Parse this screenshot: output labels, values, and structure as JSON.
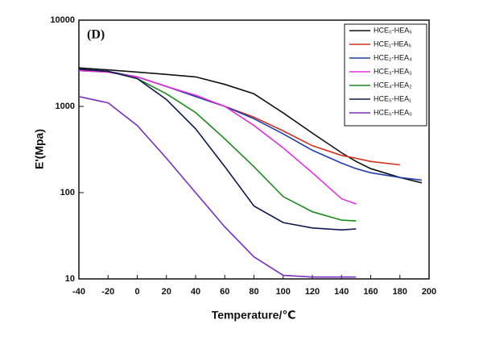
{
  "chart_data": {
    "type": "line",
    "annotation": "(D)",
    "x_label": "Temperature/℃",
    "y_label": "E'(Mpa)",
    "x": [
      -40,
      -20,
      0,
      20,
      40,
      60,
      80,
      100,
      120,
      140,
      150,
      160,
      180,
      195
    ],
    "xlim": [
      -40,
      200
    ],
    "xticks": [
      -40,
      -20,
      0,
      20,
      40,
      60,
      80,
      100,
      120,
      140,
      160,
      180,
      200
    ],
    "ylim": [
      10,
      10000
    ],
    "yticks": [
      10,
      100,
      1000,
      10000
    ],
    "yscale": "log",
    "grid": false,
    "legend": "upper right",
    "series": [
      {
        "name": "HCE₀-HEA₆",
        "color": "#111111",
        "values": [
          2800,
          2650,
          2500,
          2350,
          2200,
          1800,
          1400,
          840,
          490,
          290,
          230,
          190,
          150,
          130
        ]
      },
      {
        "name": "HCE₁-HEA₅",
        "color": "#d0301c",
        "values": [
          2600,
          2500,
          2200,
          1700,
          1300,
          1000,
          750,
          520,
          350,
          270,
          250,
          230,
          210,
          null
        ]
      },
      {
        "name": "HCE₂-HEA₄",
        "color": "#1f3fa8",
        "values": [
          2700,
          2550,
          2200,
          1700,
          1300,
          1000,
          720,
          480,
          310,
          220,
          190,
          170,
          150,
          140
        ]
      },
      {
        "name": "HCE₃-HEA₃",
        "color": "#e030e0",
        "values": [
          2600,
          2500,
          2200,
          1700,
          1350,
          1000,
          600,
          330,
          170,
          85,
          74,
          null,
          null,
          null
        ]
      },
      {
        "name": "HCE₄-HEA₂",
        "color": "#1a8a1a",
        "values": [
          2700,
          2550,
          2100,
          1400,
          850,
          420,
          200,
          90,
          60,
          48,
          47,
          null,
          null,
          null
        ]
      },
      {
        "name": "HCE₅-HEA₁",
        "color": "#101850",
        "values": [
          2700,
          2550,
          2100,
          1200,
          550,
          200,
          70,
          45,
          39,
          37,
          38,
          null,
          null,
          null
        ]
      },
      {
        "name": "HCE₆-HEA₀",
        "color": "#7a2fbf",
        "values": [
          1300,
          1100,
          600,
          250,
          100,
          40,
          18,
          11,
          10.5,
          10.5,
          10.5,
          null,
          null,
          null
        ]
      }
    ]
  }
}
